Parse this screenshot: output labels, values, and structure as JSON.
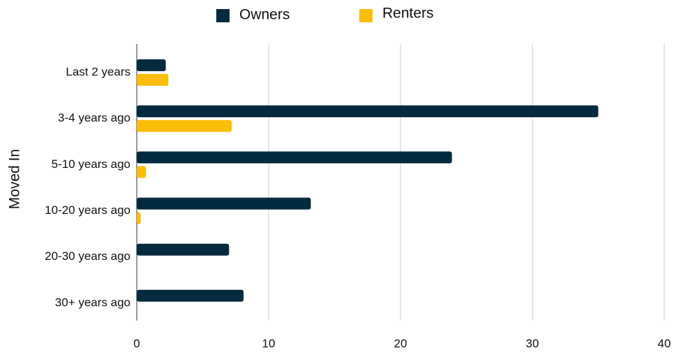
{
  "chart_data": {
    "type": "hbar",
    "y_axis_label": "Moved In",
    "categories": [
      "Last 2 years",
      "3-4 years ago",
      "5-10 years ago",
      "10-20 years ago",
      "20-30 years ago",
      "30+ years ago"
    ],
    "series": [
      {
        "name": "Owners",
        "color": "#042a3f",
        "values": [
          2.2,
          35.0,
          23.9,
          13.2,
          7.0,
          8.1
        ]
      },
      {
        "name": "Renters",
        "color": "#fbbd08",
        "values": [
          2.4,
          7.2,
          0.7,
          0.3,
          0,
          0
        ]
      }
    ],
    "xlim": [
      0,
      40
    ],
    "xticks": [
      0,
      10,
      20,
      30,
      40
    ],
    "grid": true,
    "legend": "top"
  }
}
